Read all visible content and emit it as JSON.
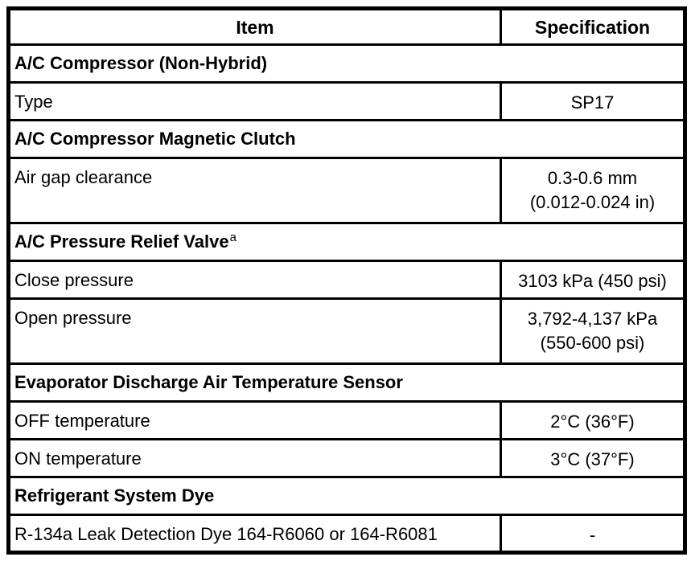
{
  "table": {
    "columns": {
      "item_label": "Item",
      "spec_label": "Specification"
    },
    "rows": [
      {
        "type": "section",
        "item": "A/C Compressor (Non-Hybrid)",
        "superscript": ""
      },
      {
        "type": "data",
        "item": "Type",
        "spec": [
          "SP17"
        ]
      },
      {
        "type": "section",
        "item": "A/C Compressor Magnetic Clutch",
        "superscript": ""
      },
      {
        "type": "data",
        "item": "Air gap clearance",
        "spec": [
          "0.3-0.6 mm",
          "(0.012-0.024 in)"
        ]
      },
      {
        "type": "section",
        "item": "A/C Pressure Relief Valve",
        "superscript": "a"
      },
      {
        "type": "data",
        "item": "Close pressure",
        "spec": [
          "3103 kPa (450 psi)"
        ]
      },
      {
        "type": "data",
        "item": "Open pressure",
        "spec": [
          "3,792-4,137 kPa",
          "(550-600 psi)"
        ]
      },
      {
        "type": "section",
        "item": "Evaporator Discharge Air Temperature Sensor",
        "superscript": ""
      },
      {
        "type": "data",
        "item": "OFF temperature",
        "spec": [
          "2°C (36°F)"
        ]
      },
      {
        "type": "data",
        "item": "ON temperature",
        "spec": [
          "3°C (37°F)"
        ]
      },
      {
        "type": "section",
        "item": "Refrigerant System Dye",
        "superscript": ""
      },
      {
        "type": "data",
        "item": "R-134a Leak Detection Dye 164-R6060 or 164-R6081",
        "spec": [
          "-"
        ]
      }
    ]
  }
}
